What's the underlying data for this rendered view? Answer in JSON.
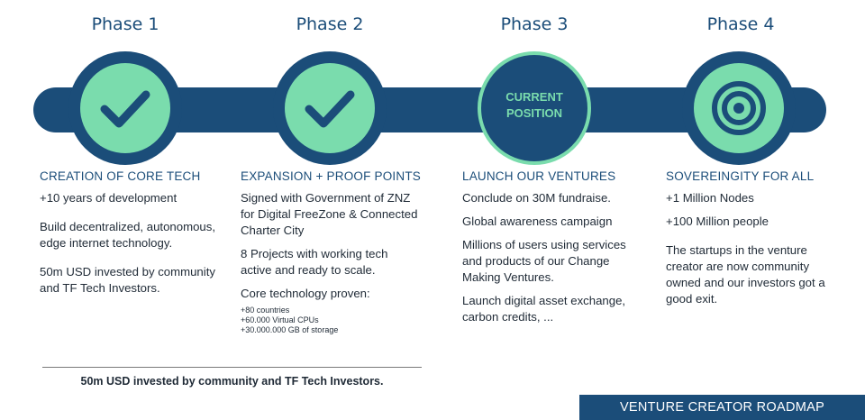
{
  "phases": [
    {
      "title": "Phase 1",
      "node": "check-icon"
    },
    {
      "title": "Phase 2",
      "node": "check-icon"
    },
    {
      "title": "Phase 3",
      "node": "current-position",
      "node_label_line1": "CURRENT",
      "node_label_line2": "POSITION"
    },
    {
      "title": "Phase 4",
      "node": "target-icon"
    }
  ],
  "columns": [
    {
      "title": "CREATION OF CORE TECH",
      "items": [
        "+10 years of development",
        "Build decentralized, autonomous, edge internet technology.",
        "50m USD invested by community and TF Tech Investors."
      ]
    },
    {
      "title": "EXPANSION + PROOF POINTS",
      "items": [
        "Signed with Government of ZNZ for Digital FreeZone & Connected Charter City",
        "8 Projects with working tech active and ready to scale.",
        "Core technology proven:"
      ],
      "sub_items": [
        "+80 countries",
        "+60.000 Virtual CPUs",
        "+30.000.000 GB of storage"
      ]
    },
    {
      "title": "LAUNCH OUR VENTURES",
      "items": [
        "Conclude on 30M fundraise.",
        "Global awareness campaign",
        "Millions of users using services and products of our Change Making Ventures.",
        "Launch digital asset exchange, carbon credits, ..."
      ]
    },
    {
      "title": "SOVEREINGITY FOR ALL",
      "items": [
        "+1 Million Nodes",
        "+100 Million people",
        "The startups in the venture creator are now community owned and our investors got a good exit."
      ]
    }
  ],
  "footnote": "50m USD invested by community and TF Tech Investors.",
  "banner": "VENTURE CREATOR ROADMAP",
  "colors": {
    "navy": "#1b4d79",
    "mint": "#7adcad"
  }
}
